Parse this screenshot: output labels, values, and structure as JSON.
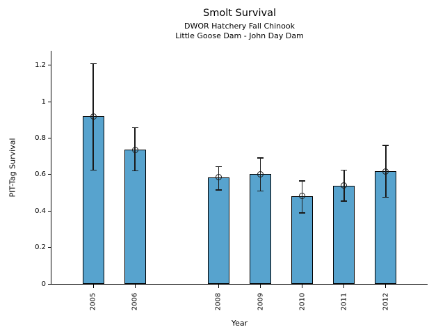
{
  "chart_data": {
    "type": "bar",
    "title": "Smolt Survival",
    "subtitle": [
      "DWOR Hatchery Fall Chinook",
      "Little Goose Dam - John Day Dam"
    ],
    "xlabel": "Year",
    "ylabel": "PIT-Tag Survival",
    "categories": [
      "2005",
      "2006",
      "2008",
      "2009",
      "2010",
      "2011",
      "2012"
    ],
    "values": [
      0.92,
      0.737,
      0.585,
      0.603,
      0.482,
      0.539,
      0.618
    ],
    "error_low": [
      0.625,
      0.62,
      0.516,
      0.511,
      0.39,
      0.454,
      0.476
    ],
    "error_high": [
      1.21,
      0.858,
      0.644,
      0.691,
      0.566,
      0.625,
      0.76
    ],
    "yticks": [
      0,
      0.2,
      0.4,
      0.6,
      0.8,
      1,
      1.2
    ],
    "ytick_labels": [
      "0",
      "0.2",
      "0.4",
      "0.6",
      "0.8",
      "1",
      "1.2"
    ],
    "ylim": [
      0,
      1.28
    ],
    "xlim": [
      2004,
      2013
    ],
    "grid": false,
    "legend": "none",
    "bar_color": "#57A3CE",
    "bar_edge_color": "#000000",
    "error_color": "#1a1a1a",
    "marker": "open-circle"
  }
}
